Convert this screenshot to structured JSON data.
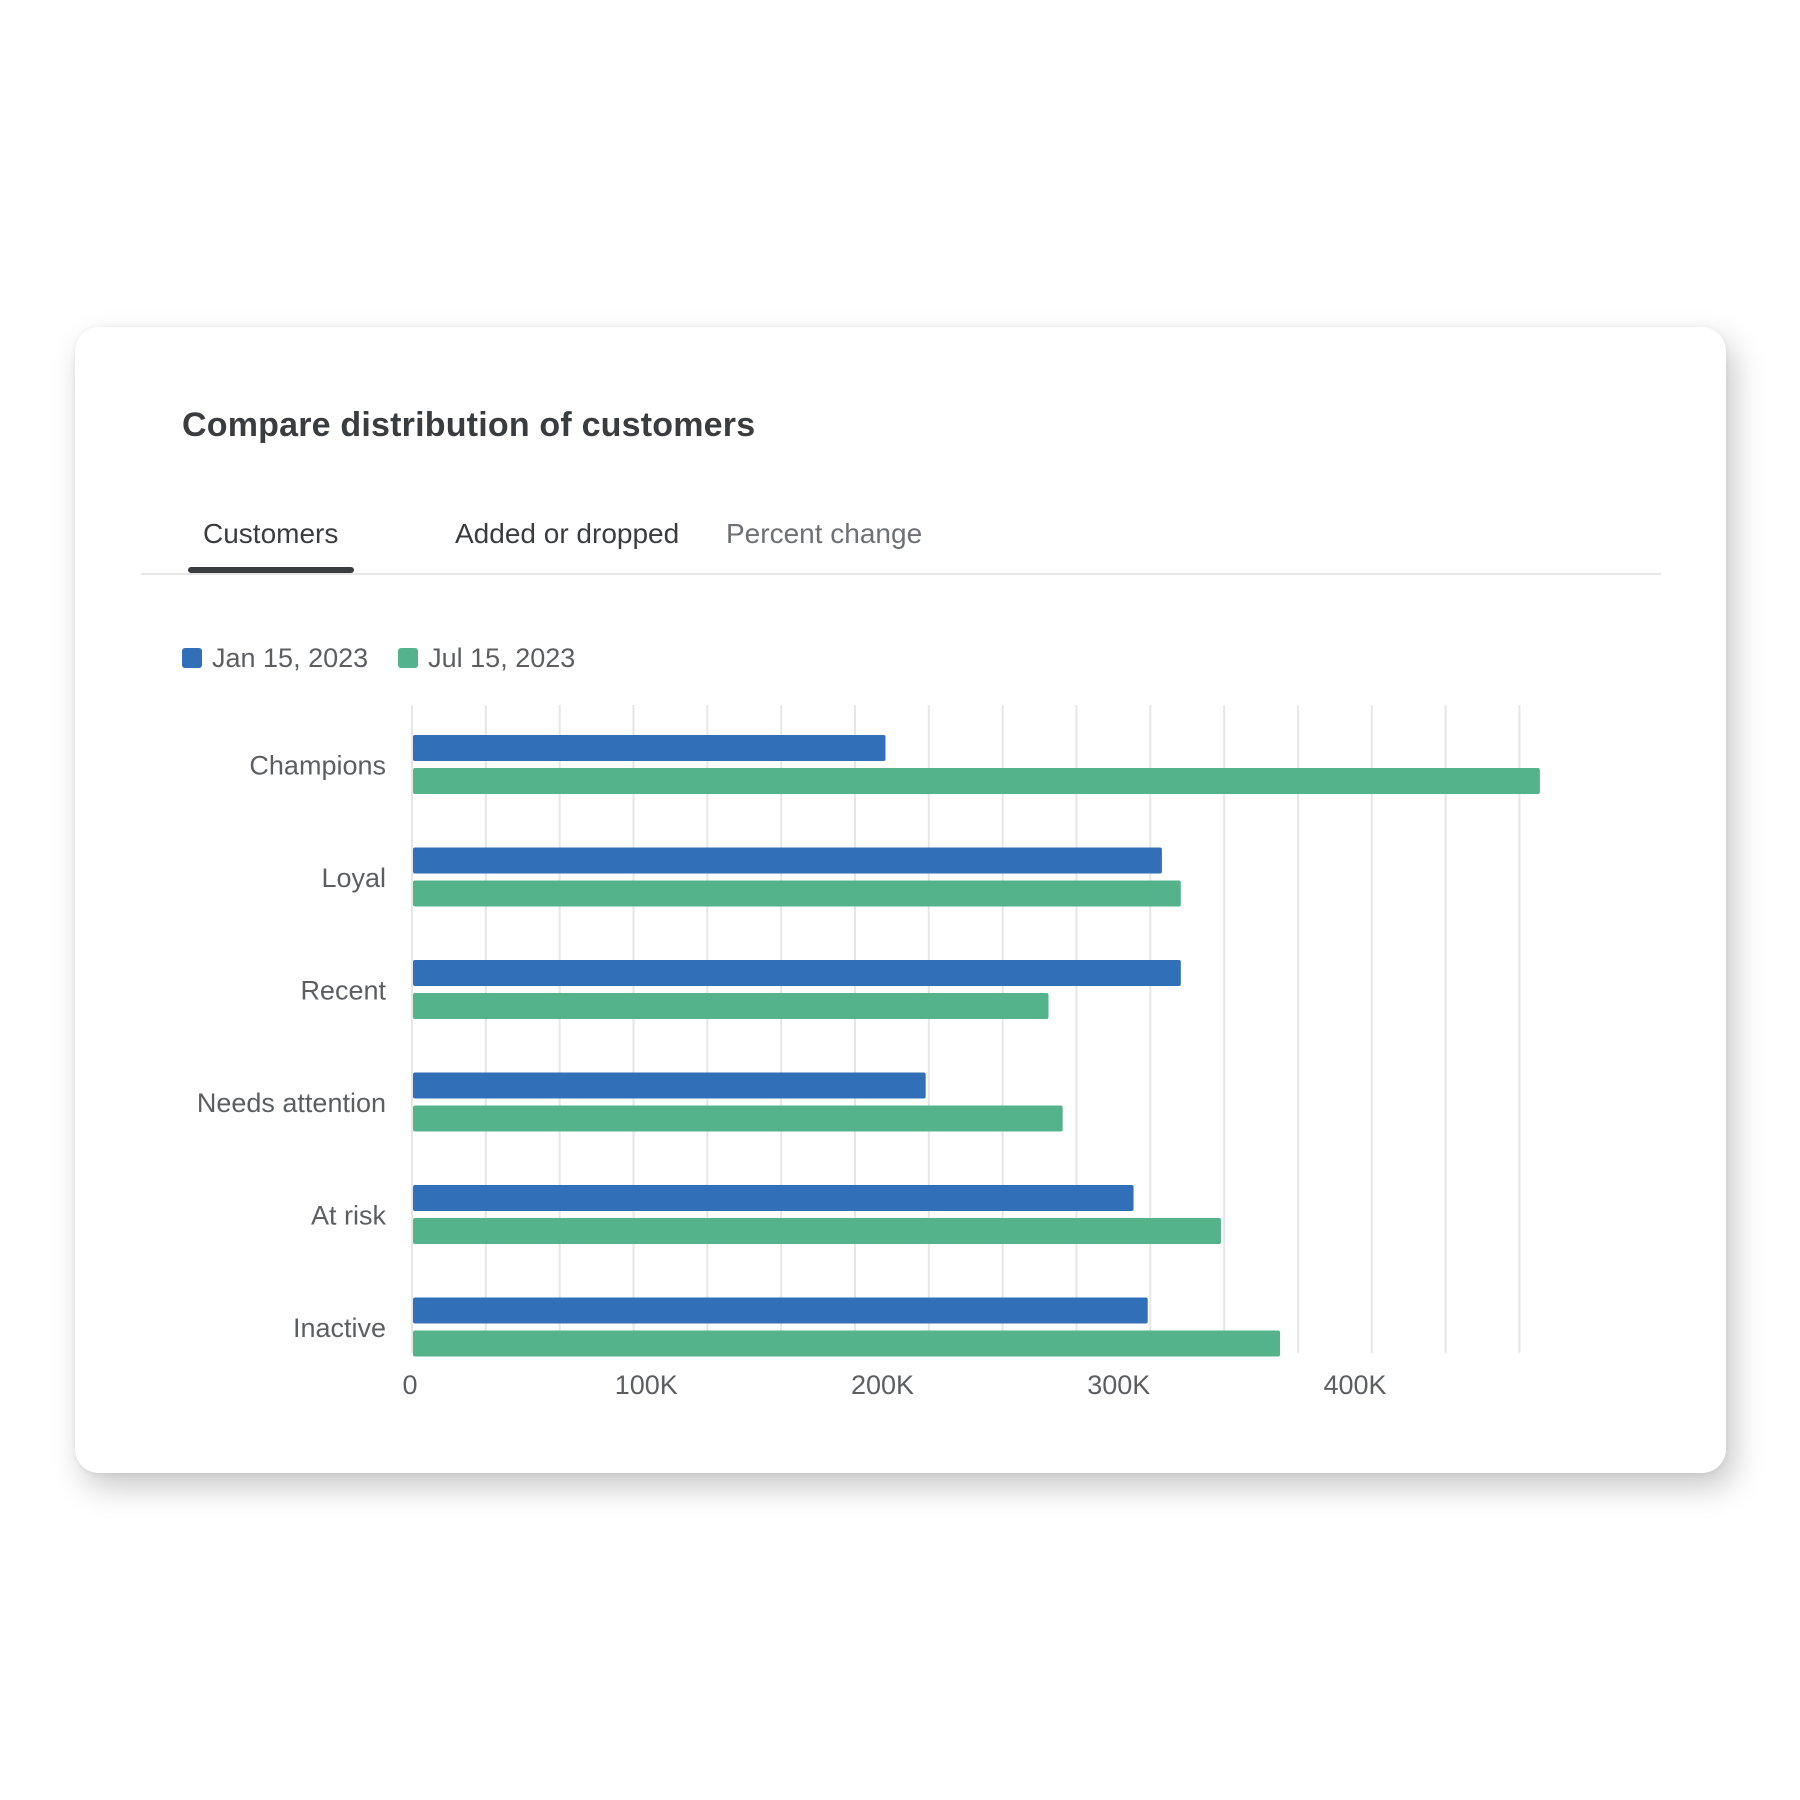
{
  "card": {
    "title": "Compare distribution of customers"
  },
  "tabs": [
    {
      "label": "Customers",
      "selected": true
    },
    {
      "label": "Added or dropped",
      "selected": false
    },
    {
      "label": "Percent change",
      "selected": false
    }
  ],
  "colors": {
    "series1": "#3170b9",
    "series2": "#55b38c",
    "grid": "#e6e6e6",
    "text": "#5c5f62"
  },
  "chart_data": {
    "type": "bar",
    "orientation": "horizontal",
    "title": "Compare distribution of customers",
    "categories": [
      "Champions",
      "Loyal",
      "Recent",
      "Needs attention",
      "At risk",
      "Inactive"
    ],
    "series": [
      {
        "name": "Jan 15, 2023",
        "color": "#3170b9",
        "values": [
          200000,
          317000,
          325000,
          217000,
          305000,
          311000
        ]
      },
      {
        "name": "Jul 15, 2023",
        "color": "#55b38c",
        "values": [
          477000,
          325000,
          269000,
          275000,
          342000,
          367000
        ]
      }
    ],
    "xticks": [
      "0",
      "100K",
      "200K",
      "300K",
      "400K"
    ],
    "xtick_values": [
      0,
      100000,
      200000,
      300000,
      400000
    ],
    "gridline_step": 31250,
    "xlim": [
      0,
      468750
    ],
    "xlabel": "",
    "ylabel": "",
    "grid": true,
    "legend_position": "top-left"
  }
}
